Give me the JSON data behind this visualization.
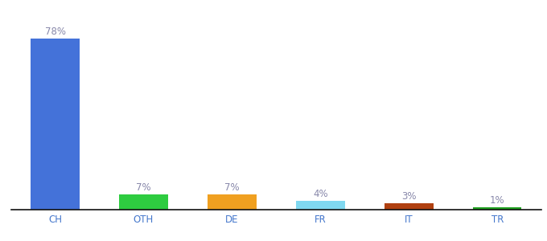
{
  "categories": [
    "CH",
    "OTH",
    "DE",
    "FR",
    "IT",
    "TR"
  ],
  "values": [
    78,
    7,
    7,
    4,
    3,
    1
  ],
  "labels": [
    "78%",
    "7%",
    "7%",
    "4%",
    "3%",
    "1%"
  ],
  "bar_colors": [
    "#4472d9",
    "#2ecc40",
    "#f0a020",
    "#80d8f0",
    "#b04010",
    "#20a020"
  ],
  "background_color": "#ffffff",
  "label_color": "#8888aa",
  "xlabel_color": "#4477cc",
  "ylim": [
    0,
    88
  ],
  "bar_width": 0.55,
  "label_fontsize": 8.5,
  "xlabel_fontsize": 8.5
}
